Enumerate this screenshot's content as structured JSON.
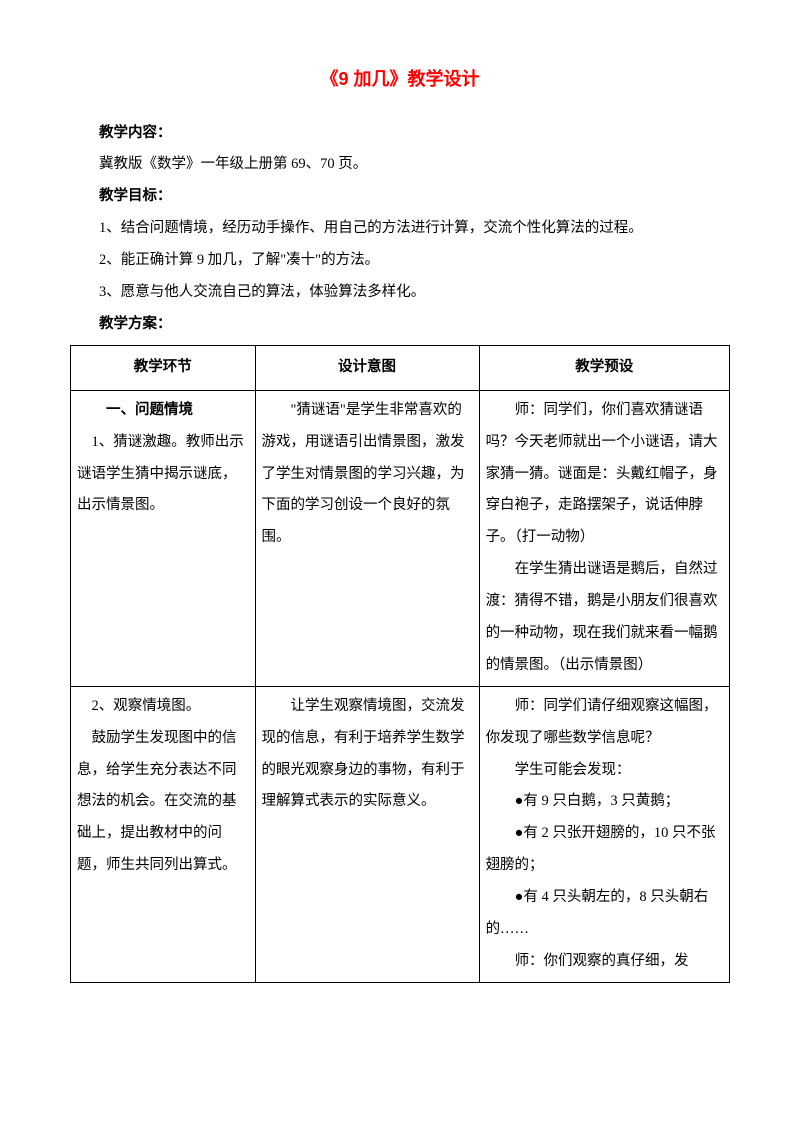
{
  "title": "《9 加几》教学设计",
  "labels": {
    "content": "教学内容：",
    "goal": "教学目标：",
    "plan": "教学方案："
  },
  "content_text": "冀教版《数学》一年级上册第 69、70 页。",
  "goals": {
    "g1": "1、结合问题情境，经历动手操作、用自己的方法进行计算，交流个性化算法的过程。",
    "g2": "2、能正确计算 9 加几，了解\"凑十\"的方法。",
    "g3": "3、愿意与他人交流自己的算法，体验算法多样化。"
  },
  "table": {
    "headers": {
      "h1": "教学环节",
      "h2": "设计意图",
      "h3": "教学预设"
    },
    "row1": {
      "c1_head": "一、问题情境",
      "c1_p1": "1、猜谜激趣。教师出示谜语学生猜中揭示谜底，出示情景图。",
      "c2_p1": "\"猜谜语\"是学生非常喜欢的游戏，用谜语引出情景图，激发了学生对情景图的学习兴趣，为下面的学习创设一个良好的氛围。",
      "c3_p1": "师：同学们，你们喜欢猜谜语吗？今天老师就出一个小谜语，请大家猜一猜。谜面是：头戴红帽子，身穿白袍子，走路摆架子，说话伸脖子。（打一动物）",
      "c3_p2": "在学生猜出谜语是鹅后，自然过渡：猜得不错，鹅是小朋友们很喜欢的一种动物，现在我们就来看一幅鹅的情景图。（出示情景图）"
    },
    "row2": {
      "c1_p1": "2、观察情境图。",
      "c1_p2": "鼓励学生发现图中的信息，给学生充分表达不同想法的机会。在交流的基础上，提出教材中的问题，师生共同列出算式。",
      "c2_p1": "让学生观察情境图，交流发现的信息，有利于培养学生数学的眼光观察身边的事物，有利于理解算式表示的实际意义。",
      "c3_p1": "师：同学们请仔细观察这幅图，你发现了哪些数学信息呢？",
      "c3_p2": "学生可能会发现：",
      "c3_b1": "●有 9 只白鹅，3 只黄鹅；",
      "c3_b2": "●有 2 只张开翅膀的，10 只不张翅膀的；",
      "c3_b3": "●有 4 只头朝左的，8 只头朝右的……",
      "c3_p3": "师：你们观察的真仔细，发"
    }
  }
}
